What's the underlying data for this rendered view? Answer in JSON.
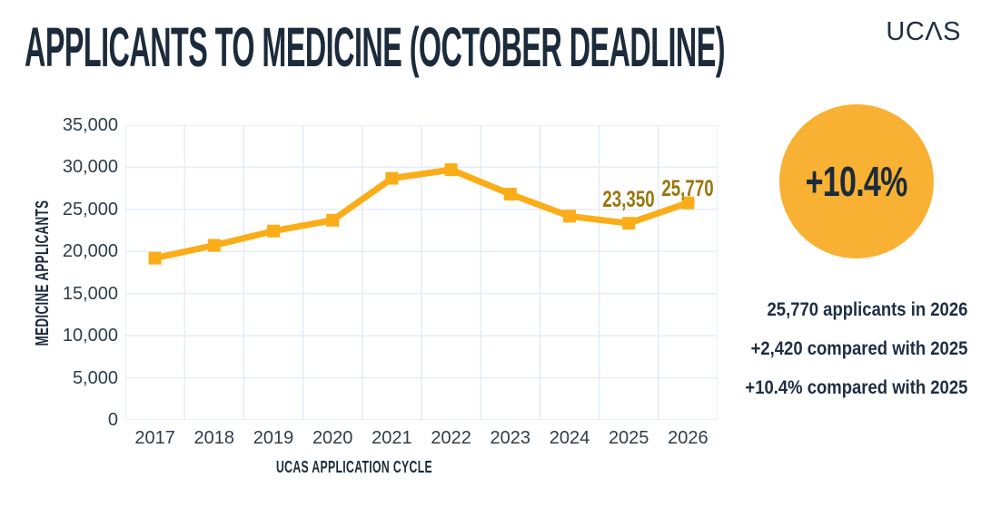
{
  "header": {
    "title": "APPLICANTS TO MEDICINE (OCTOBER DEADLINE)",
    "logo_text": "UCΛS"
  },
  "chart_data": {
    "type": "line",
    "title": "APPLICANTS TO MEDICINE (OCTOBER DEADLINE)",
    "xlabel": "UCAS APPLICATION CYCLE",
    "ylabel": "MEDICINE APPLICANTS",
    "categories": [
      "2017",
      "2018",
      "2019",
      "2020",
      "2021",
      "2022",
      "2023",
      "2024",
      "2025",
      "2026"
    ],
    "series": [
      {
        "name": "Medicine applicants",
        "values": [
          19210,
          20730,
          22430,
          23710,
          28690,
          29710,
          26810,
          24190,
          23350,
          25770
        ]
      }
    ],
    "ylim": [
      0,
      35000
    ],
    "ytick_step": 5000,
    "ytick_labels": [
      "0",
      "5,000",
      "10,000",
      "15,000",
      "20,000",
      "25,000",
      "30,000",
      "35,000"
    ],
    "grid": true,
    "legend": false,
    "point_labels": [
      {
        "category": "2025",
        "label": "23,350"
      },
      {
        "category": "2026",
        "label": "25,770"
      }
    ],
    "colors": {
      "line": "#FBAD18",
      "marker": "#FBAD18",
      "gridline": "#E4ECF6",
      "point_label": "#9A750A"
    }
  },
  "highlight": {
    "badge_value": "+10.4%",
    "badge_color": "#F8B133",
    "stats": [
      "25,770 applicants in 2026",
      "+2,420 compared with 2025",
      "+10.4% compared with 2025"
    ]
  }
}
